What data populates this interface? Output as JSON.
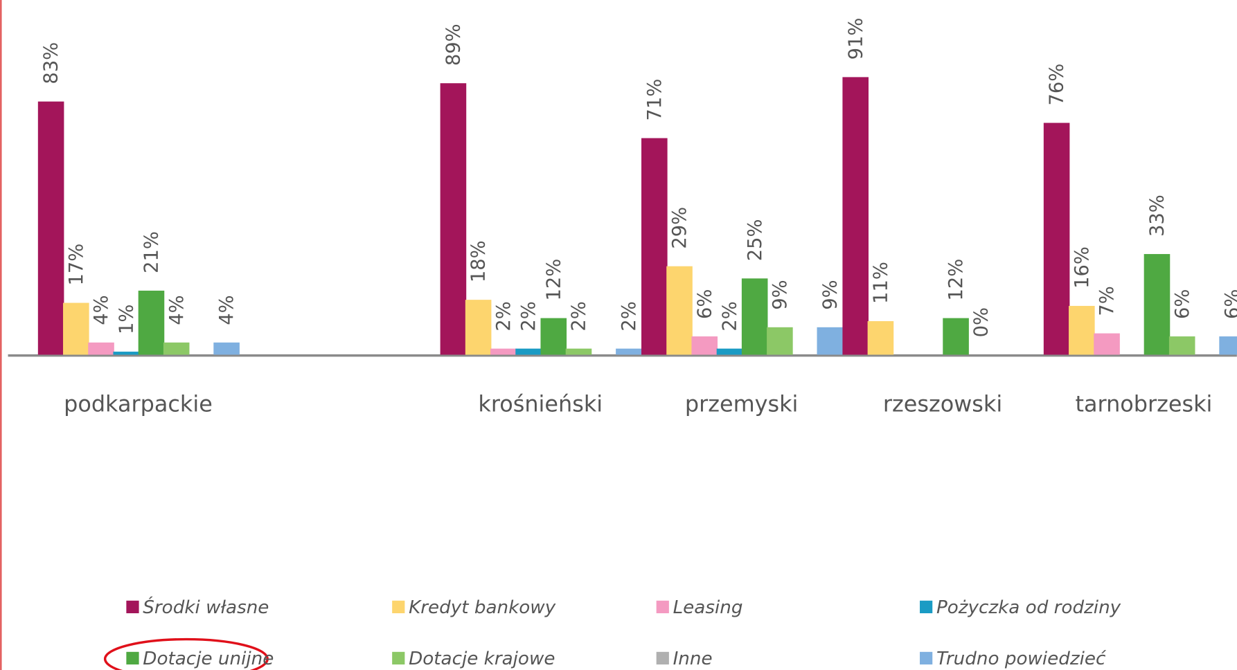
{
  "chart_data": {
    "type": "bar",
    "categories": [
      "podkarpackie",
      null,
      "krośnieński",
      "przemyski",
      "rzeszowski",
      "tarnobrzeski"
    ],
    "series": [
      {
        "name": "Środki własne",
        "color": "#a3155a",
        "values": [
          83,
          null,
          89,
          71,
          91,
          76
        ],
        "value_labels": [
          "83%",
          null,
          "89%",
          "71%",
          "91%",
          "76%"
        ]
      },
      {
        "name": "Kredyt bankowy",
        "color": "#fdd56e",
        "values": [
          17,
          null,
          18,
          29,
          11,
          16
        ],
        "value_labels": [
          "17%",
          null,
          "18%",
          "29%",
          "11%",
          "16%"
        ]
      },
      {
        "name": "Leasing",
        "color": "#f49ac1",
        "values": [
          4,
          null,
          2,
          6,
          null,
          7
        ],
        "value_labels": [
          "4%",
          null,
          "2%",
          "6%",
          null,
          "7%"
        ]
      },
      {
        "name": "Pożyczka od rodziny",
        "color": "#1a9bc4",
        "values": [
          1,
          null,
          2,
          2,
          null,
          null
        ],
        "value_labels": [
          "1%",
          null,
          "2%",
          "2%",
          null,
          null
        ]
      },
      {
        "name": "Dotacje unijne",
        "color": "#4fa942",
        "values": [
          21,
          null,
          12,
          25,
          12,
          33
        ],
        "value_labels": [
          "21%",
          null,
          "12%",
          "25%",
          "12%",
          "33%"
        ]
      },
      {
        "name": "Dotacje krajowe",
        "color": "#8cc866",
        "values": [
          4,
          null,
          2,
          9,
          0,
          6
        ],
        "value_labels": [
          "4%",
          null,
          "2%",
          "9%",
          "0%",
          "6%"
        ]
      },
      {
        "name": "Inne",
        "color": "#b0b0b0",
        "values": [
          null,
          null,
          null,
          null,
          null,
          null
        ]
      },
      {
        "name": "Trudno powiedzieć",
        "color": "#7fb0e0",
        "values": [
          4,
          null,
          2,
          9,
          null,
          6
        ],
        "value_labels": [
          "4%",
          null,
          "2%",
          "9%",
          null,
          "6%"
        ]
      }
    ]
  }
}
